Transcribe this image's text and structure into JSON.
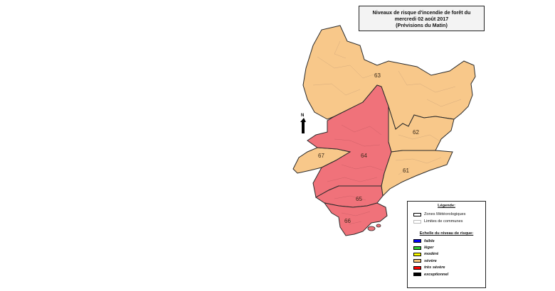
{
  "title": {
    "line1": "Niveaux de risque d'incendie de forêt du",
    "line2": "mercredi 02 août 2017",
    "line3": "(Prévisions du Matin)"
  },
  "north_arrow": "N",
  "zones": [
    {
      "id": "63",
      "level": "sévère"
    },
    {
      "id": "62",
      "level": "sévère"
    },
    {
      "id": "61",
      "level": "sévère"
    },
    {
      "id": "64",
      "level": "très sévère"
    },
    {
      "id": "65",
      "level": "très sévère"
    },
    {
      "id": "66",
      "level": "très sévère"
    },
    {
      "id": "67",
      "level": "sévère"
    }
  ],
  "legend": {
    "title": "Légende:",
    "items": [
      {
        "label": "Zones Météorologiques"
      },
      {
        "label": "Limites de communes"
      }
    ],
    "scale_title": "Echelle du niveau de risque:",
    "levels": [
      {
        "label": "faible",
        "color": "#0000ff"
      },
      {
        "label": "léger",
        "color": "#33cc33"
      },
      {
        "label": "modéré",
        "color": "#ffff00"
      },
      {
        "label": "sévère",
        "color": "#f5c27a"
      },
      {
        "label": "très sévère",
        "color": "#ff0000"
      },
      {
        "label": "exceptionnel",
        "color": "#000000"
      }
    ]
  },
  "colors": {
    "severe_fill": "#f8c88a",
    "tres_severe_fill": "#f0727a",
    "zone_border": "#2a2a2a"
  }
}
